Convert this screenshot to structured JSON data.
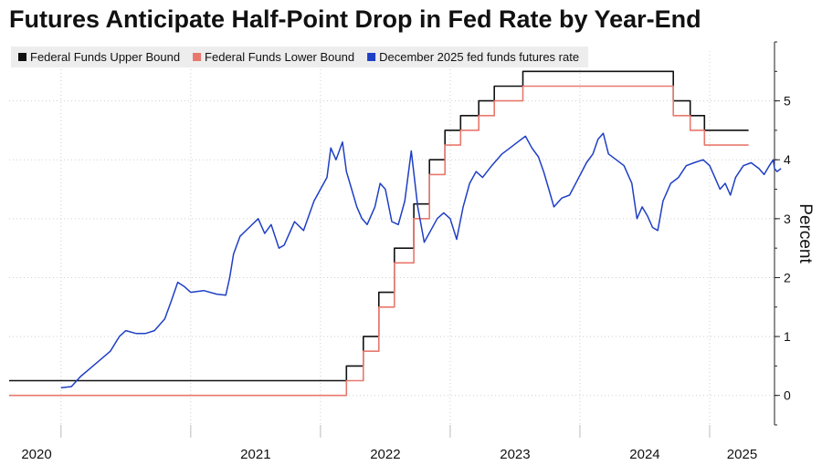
{
  "chart_data": {
    "type": "line",
    "title": "Futures Anticipate Half-Point Drop in Fed Rate by Year-End",
    "xlabel": "",
    "ylabel": "Percent",
    "ylim": [
      -0.5,
      6
    ],
    "xlim": [
      2019.6,
      2025.5
    ],
    "y_ticks": [
      0,
      1,
      2,
      3,
      4,
      5
    ],
    "x_ticks": [
      "2020",
      "2021",
      "2022",
      "2023",
      "2024",
      "2025"
    ],
    "grid": true,
    "legend": "top-left",
    "series": [
      {
        "name": "Federal Funds Upper Bound",
        "color": "#111111",
        "step": true,
        "points": [
          [
            2019.6,
            0.25
          ],
          [
            2022.2,
            0.5
          ],
          [
            2022.33,
            1.0
          ],
          [
            2022.45,
            1.75
          ],
          [
            2022.57,
            2.5
          ],
          [
            2022.72,
            3.25
          ],
          [
            2022.84,
            4.0
          ],
          [
            2022.96,
            4.5
          ],
          [
            2023.08,
            4.75
          ],
          [
            2023.22,
            5.0
          ],
          [
            2023.34,
            5.25
          ],
          [
            2023.56,
            5.5
          ],
          [
            2024.72,
            5.0
          ],
          [
            2024.85,
            4.75
          ],
          [
            2024.96,
            4.5
          ],
          [
            2025.3,
            4.5
          ]
        ]
      },
      {
        "name": "Federal Funds Lower Bound",
        "color": "#e8786d",
        "step": true,
        "points": [
          [
            2019.6,
            0.0
          ],
          [
            2022.2,
            0.25
          ],
          [
            2022.33,
            0.75
          ],
          [
            2022.45,
            1.5
          ],
          [
            2022.57,
            2.25
          ],
          [
            2022.72,
            3.0
          ],
          [
            2022.84,
            3.75
          ],
          [
            2022.96,
            4.25
          ],
          [
            2023.08,
            4.5
          ],
          [
            2023.22,
            4.75
          ],
          [
            2023.34,
            5.0
          ],
          [
            2023.56,
            5.25
          ],
          [
            2024.72,
            4.75
          ],
          [
            2024.85,
            4.5
          ],
          [
            2024.96,
            4.25
          ],
          [
            2025.3,
            4.25
          ]
        ]
      },
      {
        "name": "December 2025 fed funds futures rate",
        "color": "#1f3fc4",
        "step": false,
        "points": [
          [
            2020.0,
            0.13
          ],
          [
            2020.08,
            0.15
          ],
          [
            2020.15,
            0.32
          ],
          [
            2020.22,
            0.45
          ],
          [
            2020.3,
            0.6
          ],
          [
            2020.38,
            0.75
          ],
          [
            2020.45,
            1.0
          ],
          [
            2020.5,
            1.1
          ],
          [
            2020.58,
            1.05
          ],
          [
            2020.65,
            1.05
          ],
          [
            2020.72,
            1.1
          ],
          [
            2020.8,
            1.3
          ],
          [
            2020.85,
            1.6
          ],
          [
            2020.9,
            1.92
          ],
          [
            2020.95,
            1.85
          ],
          [
            2021.0,
            1.75
          ],
          [
            2021.1,
            1.78
          ],
          [
            2021.2,
            1.72
          ],
          [
            2021.27,
            1.7
          ],
          [
            2021.3,
            2.0
          ],
          [
            2021.33,
            2.4
          ],
          [
            2021.38,
            2.7
          ],
          [
            2021.45,
            2.85
          ],
          [
            2021.52,
            3.0
          ],
          [
            2021.57,
            2.75
          ],
          [
            2021.62,
            2.9
          ],
          [
            2021.68,
            2.5
          ],
          [
            2021.72,
            2.55
          ],
          [
            2021.8,
            2.95
          ],
          [
            2021.87,
            2.8
          ],
          [
            2021.95,
            3.3
          ],
          [
            2022.0,
            3.5
          ],
          [
            2022.05,
            3.7
          ],
          [
            2022.08,
            4.2
          ],
          [
            2022.12,
            4.0
          ],
          [
            2022.17,
            4.3
          ],
          [
            2022.2,
            3.8
          ],
          [
            2022.24,
            3.5
          ],
          [
            2022.28,
            3.2
          ],
          [
            2022.32,
            3.0
          ],
          [
            2022.36,
            2.9
          ],
          [
            2022.42,
            3.2
          ],
          [
            2022.46,
            3.6
          ],
          [
            2022.5,
            3.5
          ],
          [
            2022.55,
            2.95
          ],
          [
            2022.6,
            2.9
          ],
          [
            2022.65,
            3.3
          ],
          [
            2022.7,
            4.15
          ],
          [
            2022.75,
            3.2
          ],
          [
            2022.8,
            2.6
          ],
          [
            2022.85,
            2.8
          ],
          [
            2022.9,
            3.0
          ],
          [
            2022.95,
            3.1
          ],
          [
            2023.0,
            3.0
          ],
          [
            2023.05,
            2.65
          ],
          [
            2023.1,
            3.2
          ],
          [
            2023.15,
            3.6
          ],
          [
            2023.2,
            3.8
          ],
          [
            2023.25,
            3.7
          ],
          [
            2023.32,
            3.9
          ],
          [
            2023.4,
            4.1
          ],
          [
            2023.46,
            4.2
          ],
          [
            2023.52,
            4.3
          ],
          [
            2023.58,
            4.4
          ],
          [
            2023.63,
            4.2
          ],
          [
            2023.68,
            4.05
          ],
          [
            2023.72,
            3.8
          ],
          [
            2023.76,
            3.5
          ],
          [
            2023.8,
            3.2
          ],
          [
            2023.86,
            3.35
          ],
          [
            2023.92,
            3.4
          ],
          [
            2023.98,
            3.65
          ],
          [
            2024.05,
            3.95
          ],
          [
            2024.1,
            4.1
          ],
          [
            2024.14,
            4.35
          ],
          [
            2024.18,
            4.45
          ],
          [
            2024.22,
            4.1
          ],
          [
            2024.28,
            4.0
          ],
          [
            2024.34,
            3.9
          ],
          [
            2024.4,
            3.6
          ],
          [
            2024.44,
            3.0
          ],
          [
            2024.48,
            3.2
          ],
          [
            2024.52,
            3.05
          ],
          [
            2024.56,
            2.85
          ],
          [
            2024.6,
            2.8
          ],
          [
            2024.64,
            3.3
          ],
          [
            2024.7,
            3.6
          ],
          [
            2024.76,
            3.7
          ],
          [
            2024.82,
            3.9
          ],
          [
            2024.88,
            3.95
          ],
          [
            2024.95,
            4.0
          ],
          [
            2025.0,
            3.9
          ],
          [
            2025.04,
            3.7
          ],
          [
            2025.08,
            3.5
          ],
          [
            2025.12,
            3.6
          ],
          [
            2025.16,
            3.4
          ],
          [
            2025.2,
            3.7
          ],
          [
            2025.26,
            3.9
          ],
          [
            2025.32,
            3.95
          ],
          [
            2025.38,
            3.85
          ],
          [
            2025.42,
            3.75
          ],
          [
            2025.46,
            3.9
          ],
          [
            2025.49,
            4.0
          ],
          [
            2025.5,
            3.85
          ],
          [
            2025.52,
            3.8
          ],
          [
            2025.55,
            3.85
          ]
        ]
      }
    ]
  }
}
